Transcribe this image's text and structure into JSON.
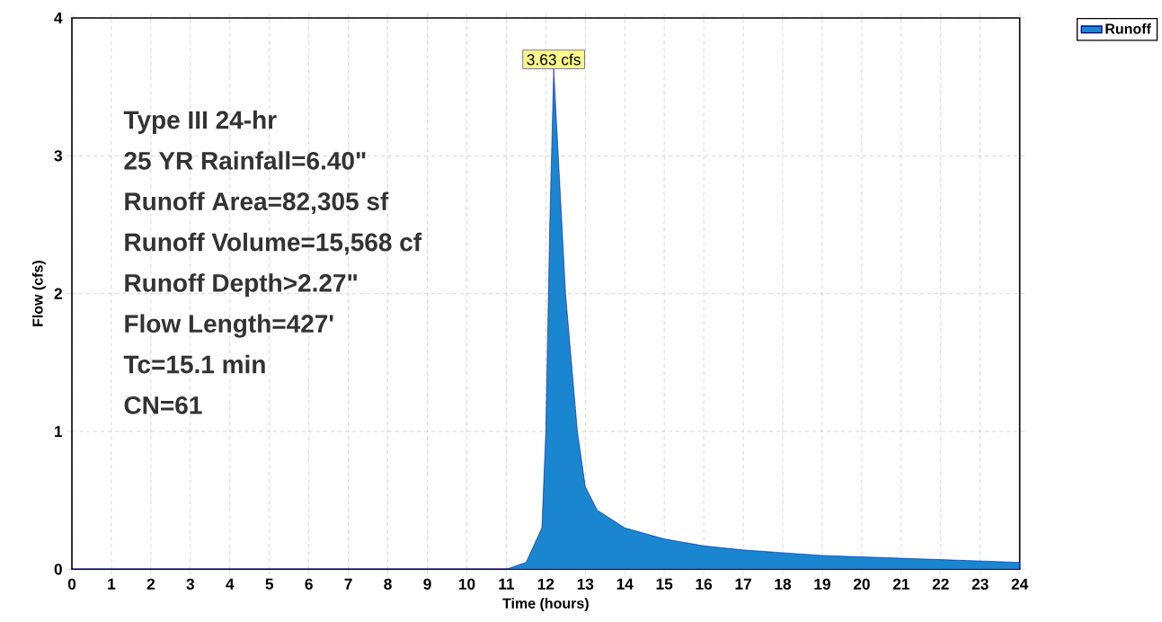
{
  "chart_data": {
    "type": "area",
    "xlabel": "Time (hours)",
    "ylabel": "Flow (cfs)",
    "x": [
      0,
      11,
      11.5,
      11.9,
      12.0,
      12.1,
      12.2,
      12.5,
      12.8,
      13.0,
      13.3,
      14,
      15,
      16,
      17,
      18,
      19,
      20,
      22,
      24
    ],
    "series": [
      {
        "name": "Runoff",
        "color": "#1a86d0",
        "values": [
          0,
          0,
          0.05,
          0.3,
          1.0,
          2.5,
          3.63,
          2.0,
          1.0,
          0.6,
          0.43,
          0.3,
          0.22,
          0.17,
          0.14,
          0.12,
          0.1,
          0.09,
          0.07,
          0.05
        ]
      }
    ],
    "annotations": [
      {
        "text": "3.63 cfs",
        "x": 12.2,
        "y": 3.63
      },
      "Type III 24-hr",
      "25 YR Rainfall=6.40\"",
      "Runoff Area=82,305 sf",
      "Runoff Volume=15,568 cf",
      "Runoff Depth>2.27\"",
      "Flow Length=427'",
      "Tc=15.1 min",
      "CN=61"
    ],
    "xlim": [
      0,
      24
    ],
    "ylim": [
      0,
      4
    ],
    "xticks": [
      0,
      1,
      2,
      3,
      4,
      5,
      6,
      7,
      8,
      9,
      10,
      11,
      12,
      13,
      14,
      15,
      16,
      17,
      18,
      19,
      20,
      21,
      22,
      23,
      24
    ],
    "yticks": [
      0,
      1,
      2,
      3,
      4
    ],
    "grid": true,
    "legend": "top right"
  }
}
